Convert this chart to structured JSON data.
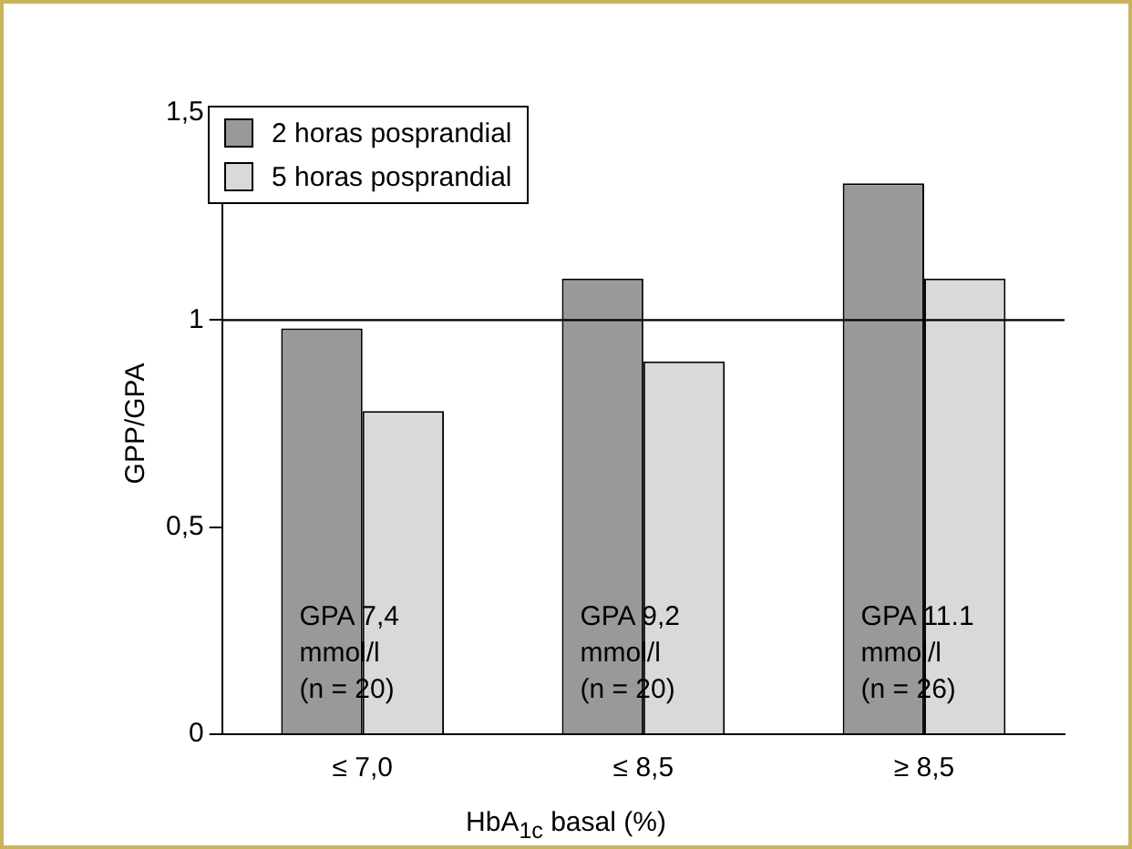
{
  "chart_data": {
    "type": "bar",
    "ylabel": "GPP/GPA",
    "xlabel": "HbA$_{1c}$ basal (%)",
    "categories": [
      "≤ 7,0",
      "≤ 8,5",
      "≥ 8,5"
    ],
    "series": [
      {
        "name": "2 horas posprandial",
        "color": "#999999",
        "values": [
          0.98,
          1.1,
          1.33
        ]
      },
      {
        "name": "5 horas posprandial",
        "color": "#d9d9d9",
        "values": [
          0.78,
          0.9,
          1.1
        ]
      }
    ],
    "ylim": [
      0,
      1.5
    ],
    "yticks": [
      0,
      {
        "value": 0.5,
        "label": "0,5"
      },
      1,
      {
        "value": 1.5,
        "label": "1,5"
      }
    ],
    "ref_lines": [
      {
        "axis": "y",
        "value": 1,
        "color": "#000000"
      }
    ],
    "annotations": [
      "GPA 7,4\nmmol/l\n(n = 20)",
      "GPA 9,2\nmmol/l\n(n = 20)",
      "GPA 11.1\nmmol/l\n(n = 26)"
    ],
    "legend": "top left",
    "grid": false
  }
}
